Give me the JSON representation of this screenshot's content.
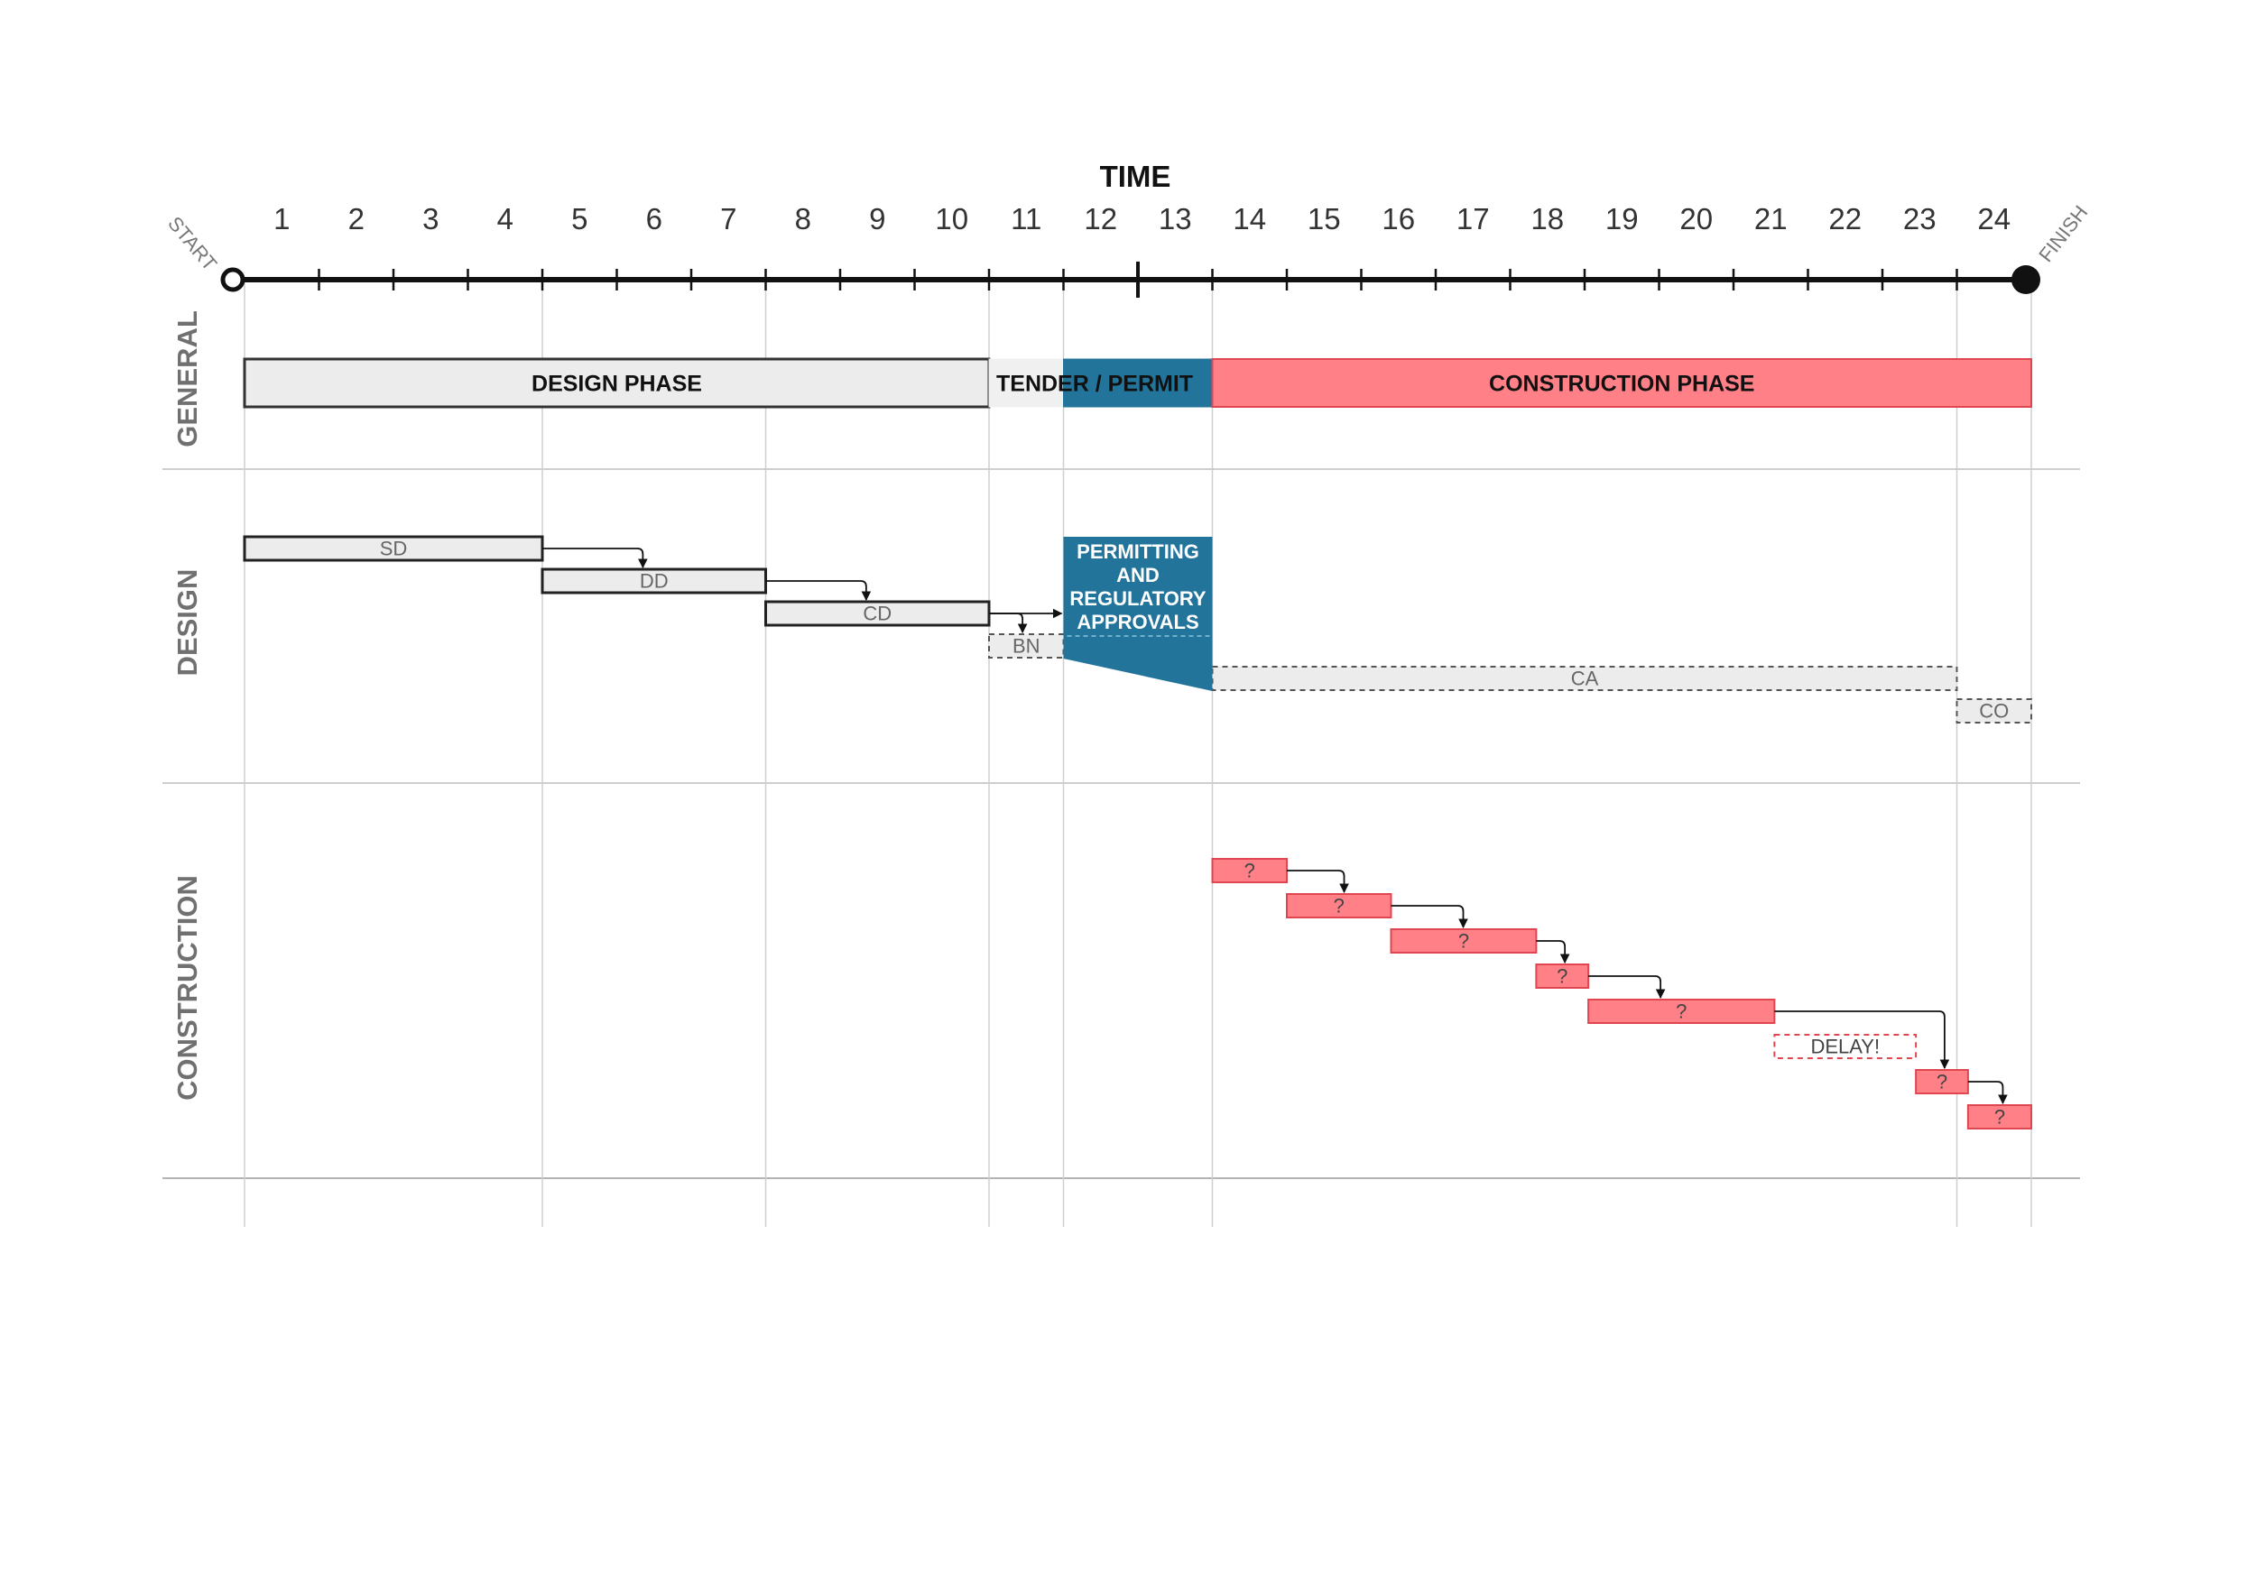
{
  "title": "TIME",
  "start_label": "START",
  "finish_label": "FINISH",
  "months": [
    "1",
    "2",
    "3",
    "4",
    "5",
    "6",
    "7",
    "8",
    "9",
    "10",
    "11",
    "12",
    "13",
    "14",
    "15",
    "16",
    "17",
    "18",
    "19",
    "20",
    "21",
    "22",
    "23",
    "24"
  ],
  "rows": {
    "general": "GENERAL",
    "design": "DESIGN",
    "construction": "CONSTRUCTION"
  },
  "general_bars": [
    {
      "id": "design-phase",
      "label": "DESIGN PHASE",
      "start": 0,
      "end": 10,
      "style": "gray-solid"
    },
    {
      "id": "tender",
      "label": "TENDER / PERMIT",
      "start": 10,
      "end": 11,
      "style": "light"
    },
    {
      "id": "permit",
      "label": "",
      "start": 11,
      "end": 13,
      "style": "blue"
    },
    {
      "id": "construction-phase",
      "label": "CONSTRUCTION PHASE",
      "start": 13,
      "end": 24,
      "style": "red-solid"
    }
  ],
  "design_bars": [
    {
      "id": "sd",
      "label": "SD",
      "start": 0,
      "end": 4,
      "lane": 0,
      "style": "gray-solid"
    },
    {
      "id": "dd",
      "label": "DD",
      "start": 4,
      "end": 7,
      "lane": 1,
      "style": "gray-solid"
    },
    {
      "id": "cd",
      "label": "CD",
      "start": 7,
      "end": 10,
      "lane": 2,
      "style": "gray-solid"
    },
    {
      "id": "bn",
      "label": "BN",
      "start": 10,
      "end": 11,
      "lane": 3,
      "style": "gray-dashed"
    },
    {
      "id": "ca",
      "label": "CA",
      "start": 13,
      "end": 23,
      "lane": 4,
      "style": "gray-dashed"
    },
    {
      "id": "co",
      "label": "CO",
      "start": 23,
      "end": 24,
      "lane": 5,
      "style": "gray-dashed"
    }
  ],
  "permitting_box": {
    "lines": [
      "PERMITTING",
      "AND",
      "REGULATORY",
      "APPROVALS"
    ],
    "start": 11,
    "end": 13
  },
  "construction_bars": [
    {
      "id": "c1",
      "label": "?",
      "start": 13,
      "end": 14,
      "lane": 0,
      "style": "red-solid"
    },
    {
      "id": "c2",
      "label": "?",
      "start": 14,
      "end": 15.4,
      "lane": 1,
      "style": "red-solid"
    },
    {
      "id": "c3",
      "label": "?",
      "start": 15.4,
      "end": 17.35,
      "lane": 2,
      "style": "red-solid"
    },
    {
      "id": "c4",
      "label": "?",
      "start": 17.35,
      "end": 18.05,
      "lane": 3,
      "style": "red-solid"
    },
    {
      "id": "c5",
      "label": "?",
      "start": 18.05,
      "end": 20.55,
      "lane": 4,
      "style": "red-solid"
    },
    {
      "id": "delay",
      "label": "DELAY!",
      "start": 20.55,
      "end": 22.45,
      "lane": 5,
      "style": "red-dashed"
    },
    {
      "id": "c6",
      "label": "?",
      "start": 22.45,
      "end": 23.15,
      "lane": 6,
      "style": "red-solid"
    },
    {
      "id": "c7",
      "label": "?",
      "start": 23.15,
      "end": 24,
      "lane": 7,
      "style": "red-solid"
    }
  ],
  "design_arrows": [
    {
      "from": "sd",
      "to": "dd"
    },
    {
      "from": "dd",
      "to": "cd"
    },
    {
      "from": "cd",
      "to": "bn"
    },
    {
      "from": "cd",
      "to": "permit-box"
    }
  ],
  "construction_arrows": [
    {
      "from": "c1",
      "to": "c2"
    },
    {
      "from": "c2",
      "to": "c3"
    },
    {
      "from": "c3",
      "to": "c4"
    },
    {
      "from": "c4",
      "to": "c5"
    },
    {
      "from": "c5",
      "to": "c6"
    },
    {
      "from": "c6",
      "to": "c7"
    }
  ],
  "colors": {
    "gray_fill": "#ececec",
    "red_fill": "#ff8087",
    "red_stroke": "#e0464f",
    "blue_fill": "#22749a",
    "line": "#111111",
    "grid": "#cfcfcf",
    "row_label": "#707070"
  }
}
